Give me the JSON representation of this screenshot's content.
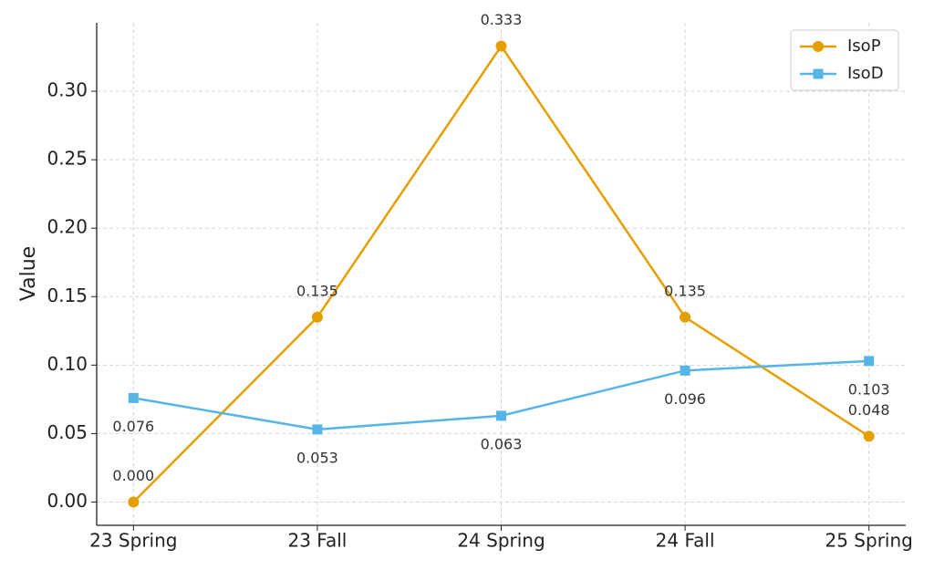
{
  "chart_data": {
    "type": "line",
    "y_label": "Value",
    "categories": [
      "23 Spring",
      "23 Fall",
      "24 Spring",
      "24 Fall",
      "25 Spring"
    ],
    "series": [
      {
        "name": "IsoP",
        "color": "#E69F00",
        "marker": "circle",
        "values": [
          0,
          0.135,
          0.333,
          0.135,
          0.048
        ],
        "value_labels": [
          "0.000",
          "0.135",
          "0.333",
          "0.135",
          "0.048"
        ]
      },
      {
        "name": "IsoD",
        "color": "#56B4E9",
        "marker": "square",
        "values": [
          0.076,
          0.053,
          0.063,
          0.096,
          0.103
        ],
        "value_labels": [
          "0.076",
          "0.053",
          "0.063",
          "0.096",
          "0.103"
        ]
      }
    ],
    "ylim": [
      -0.017,
      0.35
    ],
    "yticks": [
      {
        "value": 0,
        "label": "0.00"
      },
      {
        "value": 0.05,
        "label": "0.05"
      },
      {
        "value": 0.1,
        "label": "0.10"
      },
      {
        "value": 0.15,
        "label": "0.15"
      },
      {
        "value": 0.2,
        "label": "0.20"
      },
      {
        "value": 0.25,
        "label": "0.25"
      },
      {
        "value": 0.3,
        "label": "0.30"
      }
    ],
    "grid": true,
    "legend_position": "upper-right"
  }
}
